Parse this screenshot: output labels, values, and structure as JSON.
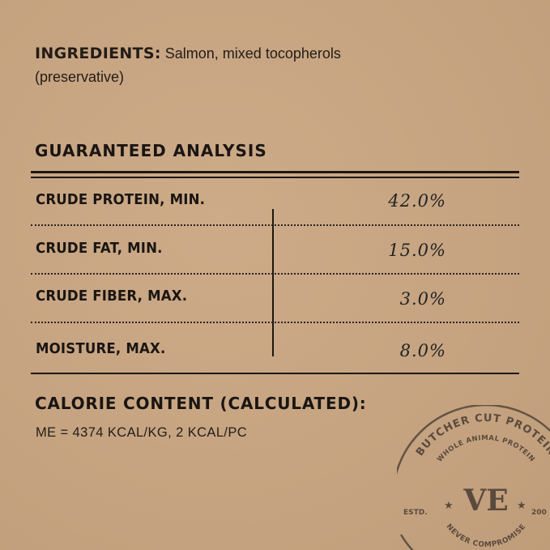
{
  "ingredients": {
    "label": "INGREDIENTS:",
    "text": "Salmon, mixed tocopherols",
    "text2": "(preservative)"
  },
  "guaranteed_analysis": {
    "title": "GUARANTEED ANALYSIS",
    "rows": [
      {
        "label": "CRUDE PROTEIN, MIN.",
        "value": "42.0%"
      },
      {
        "label": "CRUDE FAT, MIN.",
        "value": "15.0%"
      },
      {
        "label": "CRUDE FIBER, MAX.",
        "value": "3.0%"
      },
      {
        "label": "MOISTURE, MAX.",
        "value": "8.0%"
      }
    ]
  },
  "calorie": {
    "title": "CALORIE CONTENT (CALCULATED):",
    "value": "ME = 4374 KCAL/KG, 2 KCAL/PC"
  },
  "stamp": {
    "outer": "BUTCHER CUT PROTEIN",
    "inner": "WHOLE ANIMAL PROTEIN",
    "bottom": "NEVER COMPROMISE",
    "estd": "ESTD.",
    "year": "200",
    "logo": "VE",
    "color": "#5a4a3d"
  },
  "colors": {
    "background": "#c9a886",
    "text": "#1a1512"
  }
}
